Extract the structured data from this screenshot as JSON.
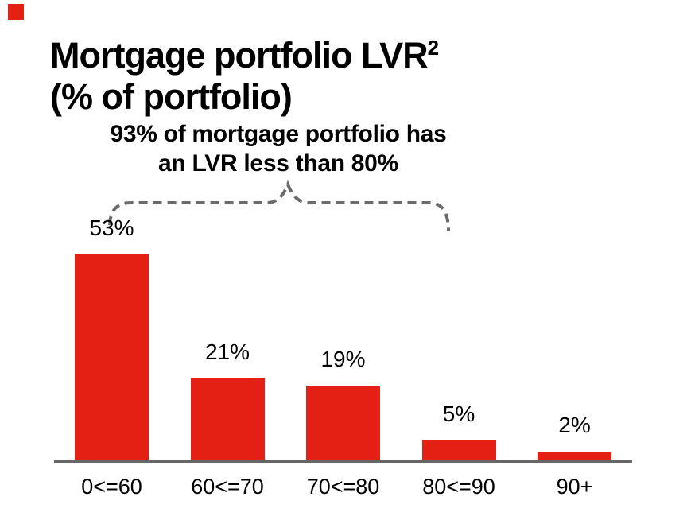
{
  "logo": {
    "color": "#e32013"
  },
  "title": {
    "line1": "Mortgage portfolio LVR",
    "superscript": "2",
    "line2": "(% of portfolio)"
  },
  "annotation": {
    "line1": "93% of mortgage portfolio has",
    "line2": "an LVR less than 80%"
  },
  "chart_data": {
    "type": "bar",
    "title": "Mortgage portfolio LVR2 (% of portfolio)",
    "categories": [
      "0<=60",
      "60<=70",
      "70<=80",
      "80<=90",
      "90+"
    ],
    "values": [
      53,
      21,
      19,
      5,
      2
    ],
    "value_labels": [
      "53%",
      "21%",
      "19%",
      "5%",
      "2%"
    ],
    "annotation": "93% of mortgage portfolio has an LVR less than 80%",
    "annotation_covers_categories": [
      "0<=60",
      "60<=70",
      "70<=80"
    ],
    "xlabel": "",
    "ylabel": "",
    "ylim": [
      0,
      60
    ],
    "grid": false,
    "legend": false,
    "bar_color": "#e32013",
    "axis_color": "#666666",
    "brace_color": "#6b6b6b",
    "text_color": "#000000"
  }
}
